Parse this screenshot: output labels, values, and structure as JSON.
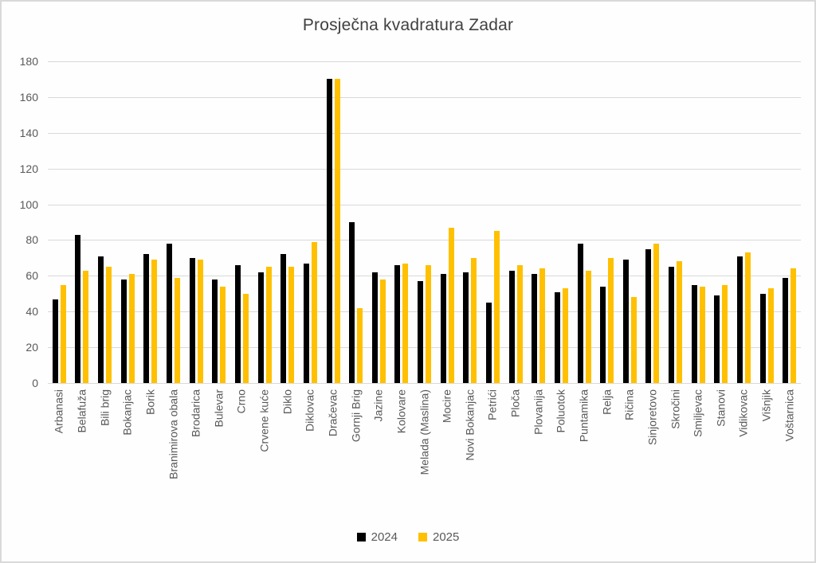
{
  "title": "Prosječna kvadratura Zadar",
  "colors": {
    "background": "#FFFFFF",
    "frame_border": "#D9D9D9",
    "gridline": "#D9D9D9",
    "title_text": "#404040",
    "axis_text": "#595959",
    "legend_text": "#595959",
    "series_2024": "#000000",
    "series_2025": "#FFC000"
  },
  "chart_data": {
    "type": "bar",
    "title": "Prosječna kvadratura Zadar",
    "xlabel": "",
    "ylabel": "",
    "ylim": [
      0,
      180
    ],
    "ytick_step": 20,
    "grid": true,
    "legend_position": "bottom",
    "categories": [
      "Arbanasi",
      "Belafuža",
      "Bili brig",
      "Bokanjac",
      "Borik",
      "Branimirova obala",
      "Brodarica",
      "Bulevar",
      "Crno",
      "Crvene kuće",
      "Diklo",
      "Diklovac",
      "Dračevac",
      "Gornji Brig",
      "Jazine",
      "Kolovare",
      "Melada (Maslina)",
      "Mocire",
      "Novi Bokanjac",
      "Petrići",
      "Ploča",
      "Plovanija",
      "Poluotok",
      "Puntamika",
      "Relja",
      "Ričina",
      "Sinjoretovo",
      "Skročini",
      "Smiljevac",
      "Stanovi",
      "Vidikovac",
      "Višnjik",
      "Voštarnica"
    ],
    "series": [
      {
        "name": "2024",
        "color": "#000000",
        "values": [
          47,
          83,
          71,
          58,
          72,
          78,
          70,
          58,
          66,
          62,
          72,
          67,
          170,
          90,
          62,
          66,
          57,
          61,
          62,
          45,
          63,
          61,
          51,
          78,
          54,
          69,
          75,
          65,
          55,
          49,
          71,
          50,
          59
        ]
      },
      {
        "name": "2025",
        "color": "#FFC000",
        "values": [
          55,
          63,
          65,
          61,
          69,
          59,
          69,
          54,
          50,
          65,
          65,
          79,
          170,
          42,
          58,
          67,
          66,
          87,
          70,
          85,
          66,
          64,
          53,
          63,
          70,
          48,
          78,
          68,
          54,
          55,
          73,
          53,
          64
        ]
      }
    ]
  }
}
